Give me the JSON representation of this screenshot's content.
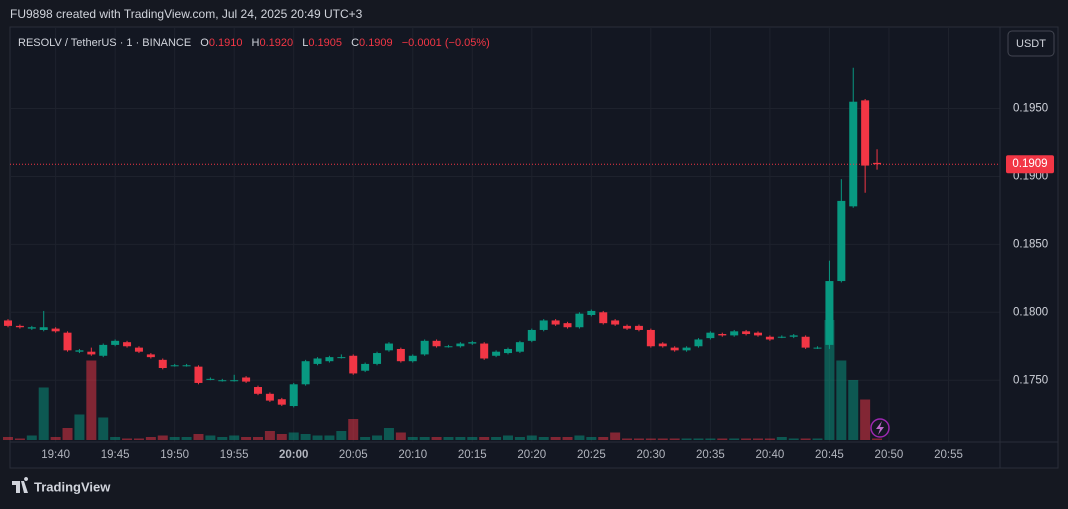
{
  "header": {
    "title": "FU9898 created with TradingView.com, Jul 24, 2025 20:49 UTC+3"
  },
  "header_legend": {
    "symbol": "RESOLV / TetherUS · 1 · BINANCE",
    "open_label": "O",
    "open": "0.1910",
    "high_label": "H",
    "high": "0.1920",
    "low_label": "L",
    "low": "0.1905",
    "close_label": "C",
    "close": "0.1909",
    "change": "−0.0001 (−0.05%)"
  },
  "currency_button": "USDT",
  "footer": {
    "brand": "TradingView"
  },
  "chart_data": {
    "type": "candlestick",
    "up_color": "#089981",
    "down_color": "#f23645",
    "volume_up_color": "rgba(8,153,129,0.5)",
    "volume_down_color": "rgba(242,54,69,0.5)",
    "x": [
      "19:36",
      "19:37",
      "19:38",
      "19:39",
      "19:40",
      "19:41",
      "19:42",
      "19:43",
      "19:44",
      "19:45",
      "19:46",
      "19:47",
      "19:48",
      "19:49",
      "19:50",
      "19:51",
      "19:52",
      "19:53",
      "19:54",
      "19:55",
      "19:56",
      "19:57",
      "19:58",
      "19:59",
      "20:00",
      "20:01",
      "20:02",
      "20:03",
      "20:04",
      "20:05",
      "20:06",
      "20:07",
      "20:08",
      "20:09",
      "20:10",
      "20:11",
      "20:12",
      "20:13",
      "20:14",
      "20:15",
      "20:16",
      "20:17",
      "20:18",
      "20:19",
      "20:20",
      "20:21",
      "20:22",
      "20:23",
      "20:24",
      "20:25",
      "20:26",
      "20:27",
      "20:28",
      "20:29",
      "20:30",
      "20:31",
      "20:32",
      "20:33",
      "20:34",
      "20:35",
      "20:36",
      "20:37",
      "20:38",
      "20:39",
      "20:40",
      "20:41",
      "20:42",
      "20:43",
      "20:44",
      "20:45",
      "20:46",
      "20:47",
      "20:48",
      "20:49"
    ],
    "open": [
      0.1794,
      0.179,
      0.1788,
      0.1787,
      0.1788,
      0.1785,
      0.1771,
      0.1771,
      0.1768,
      0.1776,
      0.1778,
      0.1774,
      0.1769,
      0.1765,
      0.1761,
      0.1761,
      0.176,
      0.1751,
      0.175,
      0.175,
      0.1752,
      0.1745,
      0.174,
      0.1736,
      0.1731,
      0.1747,
      0.1762,
      0.1764,
      0.1767,
      0.1768,
      0.1757,
      0.1762,
      0.1772,
      0.1773,
      0.1764,
      0.1769,
      0.1779,
      0.1775,
      0.1775,
      0.1777,
      0.1777,
      0.1768,
      0.177,
      0.1771,
      0.1779,
      0.1787,
      0.1794,
      0.1792,
      0.1789,
      0.1798,
      0.18,
      0.1794,
      0.179,
      0.179,
      0.1787,
      0.1777,
      0.1774,
      0.1772,
      0.1775,
      0.1781,
      0.1784,
      0.1783,
      0.1786,
      0.1785,
      0.1782,
      0.1782,
      0.1782,
      0.1782,
      0.1774,
      0.1776,
      0.1823,
      0.1878,
      0.1956,
      0.191
    ],
    "high": [
      0.1795,
      0.1791,
      0.179,
      0.1801,
      0.1789,
      0.1786,
      0.1773,
      0.1774,
      0.1777,
      0.178,
      0.1779,
      0.1775,
      0.177,
      0.1766,
      0.1762,
      0.1762,
      0.1761,
      0.1752,
      0.1751,
      0.1754,
      0.1753,
      0.1746,
      0.1741,
      0.1737,
      0.1748,
      0.1765,
      0.1767,
      0.1768,
      0.1769,
      0.1769,
      0.1763,
      0.1771,
      0.1778,
      0.1774,
      0.1769,
      0.178,
      0.178,
      0.1776,
      0.1778,
      0.1779,
      0.1778,
      0.1772,
      0.1774,
      0.1779,
      0.1788,
      0.1795,
      0.1795,
      0.1793,
      0.18,
      0.1802,
      0.1801,
      0.1795,
      0.1791,
      0.1791,
      0.1788,
      0.1778,
      0.1775,
      0.1775,
      0.1781,
      0.1786,
      0.1785,
      0.1787,
      0.1787,
      0.1786,
      0.1783,
      0.1783,
      0.1784,
      0.1783,
      0.1775,
      0.1838,
      0.1898,
      0.198,
      0.1957,
      0.192
    ],
    "low": [
      0.1789,
      0.1788,
      0.1787,
      0.1786,
      0.1785,
      0.1771,
      0.177,
      0.1768,
      0.1767,
      0.1775,
      0.1774,
      0.177,
      0.1766,
      0.1758,
      0.176,
      0.176,
      0.1747,
      0.175,
      0.1749,
      0.1749,
      0.1748,
      0.1739,
      0.1734,
      0.1731,
      0.173,
      0.1746,
      0.1761,
      0.1763,
      0.1766,
      0.1754,
      0.1756,
      0.1761,
      0.1771,
      0.1763,
      0.1763,
      0.1768,
      0.1774,
      0.1774,
      0.1774,
      0.1776,
      0.1765,
      0.1767,
      0.1769,
      0.177,
      0.1778,
      0.1786,
      0.179,
      0.1788,
      0.1788,
      0.1797,
      0.1791,
      0.179,
      0.1787,
      0.1786,
      0.1774,
      0.1774,
      0.1771,
      0.1771,
      0.1774,
      0.178,
      0.1782,
      0.1782,
      0.1783,
      0.1782,
      0.1779,
      0.1781,
      0.1781,
      0.1773,
      0.1773,
      0.1773,
      0.1822,
      0.1877,
      0.1888,
      0.1905
    ],
    "close": [
      0.179,
      0.1789,
      0.1789,
      0.1789,
      0.1786,
      0.1772,
      0.1772,
      0.1769,
      0.1776,
      0.1779,
      0.1775,
      0.1771,
      0.1767,
      0.1759,
      0.1761,
      0.1761,
      0.1748,
      0.1751,
      0.175,
      0.175,
      0.1749,
      0.174,
      0.1735,
      0.1732,
      0.1747,
      0.1764,
      0.1766,
      0.1767,
      0.1767,
      0.1755,
      0.1762,
      0.177,
      0.1777,
      0.1764,
      0.1768,
      0.1779,
      0.1775,
      0.1775,
      0.1777,
      0.1778,
      0.1766,
      0.1771,
      0.1773,
      0.1778,
      0.1787,
      0.1794,
      0.1791,
      0.1789,
      0.1799,
      0.1801,
      0.1792,
      0.1791,
      0.1788,
      0.1787,
      0.1775,
      0.1775,
      0.1772,
      0.1774,
      0.178,
      0.1785,
      0.1783,
      0.1786,
      0.1784,
      0.1783,
      0.178,
      0.1782,
      0.1783,
      0.1774,
      0.1774,
      0.1823,
      0.1882,
      0.1955,
      0.1908,
      0.1909
    ],
    "volume": [
      2,
      1,
      3,
      35,
      2,
      8,
      17,
      53,
      15,
      2,
      1,
      1,
      2,
      3,
      2,
      2,
      4,
      3,
      2,
      3,
      2,
      2,
      6,
      4,
      5,
      4,
      3,
      3,
      6,
      14,
      2,
      3,
      8,
      5,
      2,
      2,
      2,
      2,
      2,
      2,
      2,
      2,
      3,
      2,
      3,
      2,
      2,
      2,
      3,
      2,
      2,
      5,
      1,
      1,
      1,
      1,
      1,
      1,
      1,
      1,
      1,
      1,
      1,
      1,
      1,
      2,
      1,
      1,
      1,
      80,
      53,
      40,
      27,
      1
    ],
    "vlim": [
      0,
      100
    ],
    "xlim": [
      "19:36",
      "21:00"
    ],
    "xticks": [
      "19:40",
      "19:45",
      "19:50",
      "19:55",
      "20:00",
      "20:05",
      "20:10",
      "20:15",
      "20:20",
      "20:25",
      "20:30",
      "20:35",
      "20:40",
      "20:45",
      "20:50",
      "20:55"
    ],
    "ylim": [
      0.1706,
      0.201
    ],
    "yticks": [
      {
        "value": 0.175,
        "label": "0.1750"
      },
      {
        "value": 0.18,
        "label": "0.1800"
      },
      {
        "value": 0.185,
        "label": "0.1850"
      },
      {
        "value": 0.19,
        "label": "0.1900"
      },
      {
        "value": 0.195,
        "label": "0.1950"
      }
    ],
    "last_price": {
      "value": 0.1909,
      "label": "0.1909"
    },
    "grid": true
  }
}
